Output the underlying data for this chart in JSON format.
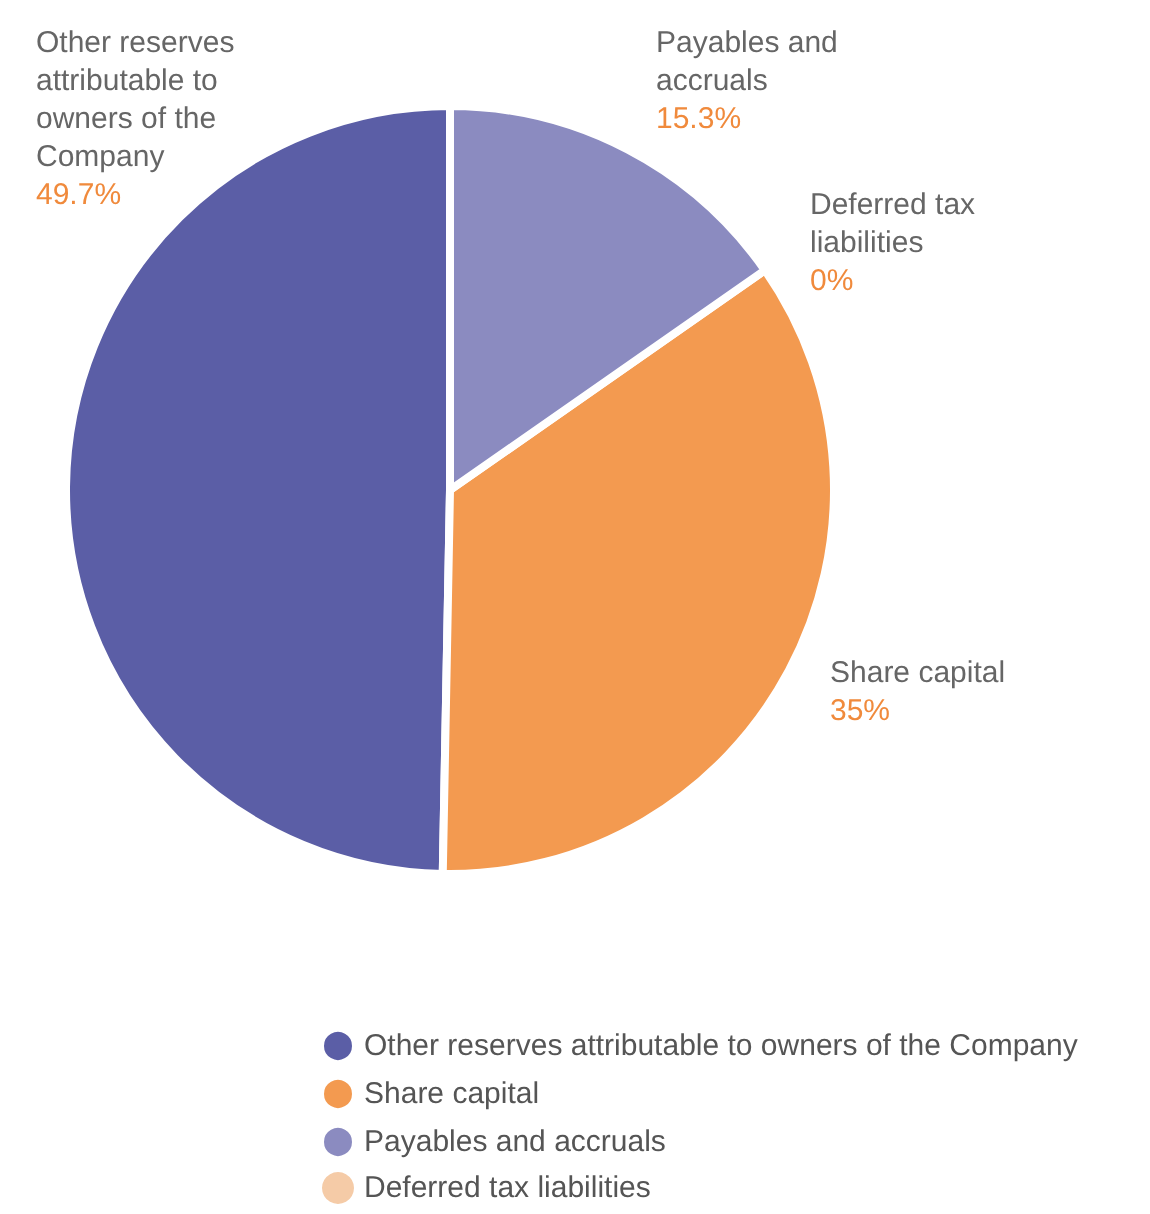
{
  "chart_data": {
    "type": "pie",
    "categories": [
      "Other reserves attributable to owners of the Company",
      "Share capital",
      "Payables and accruals",
      "Deferred tax liabilities"
    ],
    "values": [
      49.7,
      35,
      15.3,
      0
    ],
    "colors": [
      "#5b5ea6",
      "#f39a50",
      "#8b8bc0",
      "#f5cba7"
    ],
    "value_labels": [
      "49.7%",
      "35%",
      "15.3%",
      "0%"
    ],
    "legend": "bottom"
  }
}
